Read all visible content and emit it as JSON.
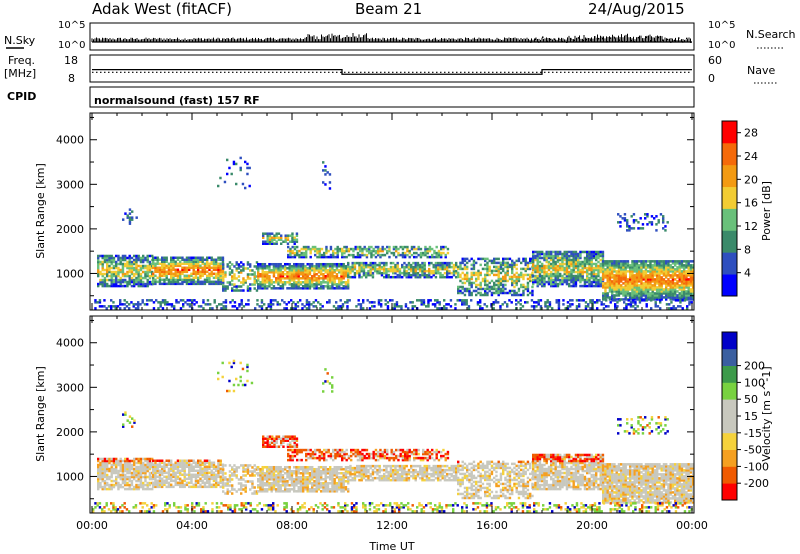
{
  "header": {
    "station": "Adak West (fitACF)",
    "beam": "Beam 21",
    "date": "24/Aug/2015"
  },
  "panels": {
    "nsky": {
      "left_label": "N.Sky",
      "right_label": "N.Search",
      "tick_top": "10^5",
      "tick_bottom": "10^0"
    },
    "freq": {
      "left_label_1": "Freq.",
      "left_label_2": "[MHz]",
      "right_label": "Nave",
      "left_ticks": [
        "18",
        "8"
      ],
      "right_ticks": [
        "60",
        "0"
      ]
    },
    "cpid": {
      "label": "CPID",
      "program": "normalsound (fast) 157 RF"
    }
  },
  "colors": {
    "power_scale": [
      "#0000ff",
      "#2e4fbf",
      "#3a8a6a",
      "#69c07a",
      "#f2cc33",
      "#f39a12",
      "#f56a0a",
      "#ff0000"
    ],
    "velocity_scale": [
      "#ff0000",
      "#f05a00",
      "#f5a020",
      "#f5d23c",
      "#c8c8be",
      "#c8c8be",
      "#78d240",
      "#3c9a4a",
      "#3a5fa0",
      "#0000c8"
    ],
    "ground_scatter": "#c8c8be"
  },
  "chart_data": [
    {
      "type": "line",
      "title": "N.Sky / N.Search",
      "x": [
        "00:00",
        "04:00",
        "08:00",
        "12:00",
        "16:00",
        "20:00",
        "00:00"
      ],
      "yscale": "log",
      "ylim": [
        1,
        100000
      ],
      "ytick_labels": [
        "10^0",
        "10^5"
      ]
    },
    {
      "type": "line",
      "title": "Freq. / Nave",
      "x": [
        "00:00",
        "04:00",
        "08:00",
        "12:00",
        "16:00",
        "20:00",
        "00:00"
      ],
      "ylabel": "[MHz]",
      "ylim": [
        8,
        18
      ],
      "y2lim": [
        0,
        60
      ],
      "series": [
        {
          "name": "Freq.",
          "segments": [
            {
              "start": "00:00",
              "end": "10:00",
              "value": 12.5
            },
            {
              "start": "10:00",
              "end": "18:00",
              "value": 10.5
            },
            {
              "start": "18:00",
              "end": "24:00",
              "value": 12.5
            }
          ]
        },
        {
          "name": "Nave",
          "value": 20
        }
      ]
    },
    {
      "type": "heatmap",
      "xlabel": "",
      "ylabel": "Slant Range [km]",
      "ylim": [
        180,
        4600
      ],
      "yticks": [
        1000,
        2000,
        3000,
        4000
      ],
      "xlim": [
        "00:00",
        "24:00"
      ],
      "colorbar": {
        "label": "Power [dB]",
        "ticks": [
          4,
          8,
          12,
          16,
          20,
          24,
          28
        ],
        "range": [
          0,
          30
        ]
      }
    },
    {
      "type": "heatmap",
      "xlabel": "Time UT",
      "ylabel": "Slant Range [km]",
      "ylim": [
        180,
        4600
      ],
      "yticks": [
        1000,
        2000,
        3000,
        4000
      ],
      "xticks": [
        "00:00",
        "04:00",
        "08:00",
        "12:00",
        "16:00",
        "20:00",
        "00:00"
      ],
      "colorbar": {
        "label": "Velocity [m s^-1]",
        "ticks": [
          -200,
          -100,
          -50,
          -15,
          15,
          50,
          100,
          200
        ]
      }
    }
  ]
}
